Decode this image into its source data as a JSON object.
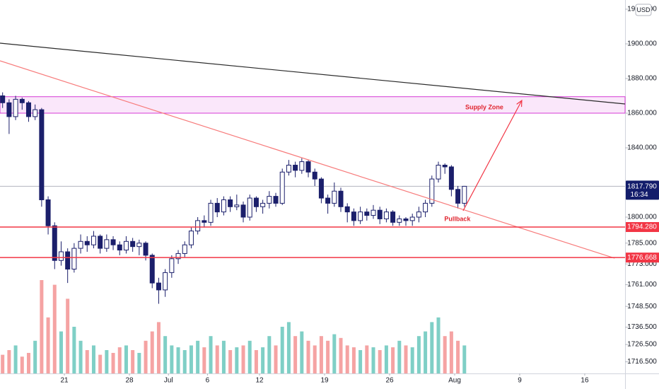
{
  "chart_data": {
    "type": "candlestick",
    "currency": "USD",
    "x": [
      -4.75,
      -4.25,
      -3.75,
      -3.25,
      -2.75,
      -2.25,
      -1.75,
      -1.25,
      -0.75,
      -0.25,
      0.25,
      0.75,
      1.25,
      1.75,
      2.25,
      2.75,
      3.25,
      3.75,
      4.25,
      4.75,
      5.25,
      5.75,
      6.25,
      6.75,
      7.25,
      7.75,
      8.25,
      8.75,
      9.25,
      9.75,
      10.25,
      10.75,
      11.25,
      11.75,
      12.25,
      12.75,
      13.25,
      13.75,
      14.25,
      14.75,
      15.25,
      15.75,
      16.25,
      16.75,
      17.25,
      17.75,
      18.25,
      18.75,
      19.25,
      19.75,
      20.25,
      20.75,
      21.25,
      21.75,
      22.25,
      22.75,
      23.25,
      23.75,
      24.25,
      24.75,
      25.25,
      25.75,
      26.25,
      26.75,
      27.25,
      27.75,
      28.25,
      28.75,
      29.25,
      29.75,
      30.25,
      30.75
    ],
    "open": [
      1870,
      1866,
      1858,
      1868,
      1866,
      1858,
      1862,
      1810,
      1795,
      1775,
      1780,
      1770,
      1782,
      1786,
      1784,
      1789,
      1782,
      1787,
      1784,
      1781,
      1786,
      1783,
      1785,
      1778,
      1762,
      1758,
      1768,
      1776,
      1779,
      1784,
      1792,
      1798,
      1797,
      1808,
      1803,
      1810,
      1806,
      1807,
      1800,
      1811,
      1806,
      1808,
      1812,
      1808,
      1826,
      1830,
      1827,
      1832,
      1826,
      1822,
      1811,
      1808,
      1815,
      1806,
      1803,
      1798,
      1803,
      1801,
      1804,
      1799,
      1803,
      1797,
      1799,
      1798,
      1800,
      1803,
      1808,
      1822,
      1830,
      1829,
      1816,
      1808
    ],
    "high": [
      1872,
      1868,
      1870,
      1869,
      1867,
      1865,
      1863,
      1812,
      1797,
      1786,
      1782,
      1785,
      1790,
      1789,
      1792,
      1790,
      1790,
      1789,
      1786,
      1789,
      1788,
      1787,
      1786,
      1779,
      1765,
      1770,
      1778,
      1781,
      1786,
      1794,
      1800,
      1801,
      1810,
      1811,
      1812,
      1812,
      1813,
      1809,
      1813,
      1812,
      1810,
      1815,
      1814,
      1828,
      1833,
      1832,
      1834,
      1833,
      1828,
      1823,
      1813,
      1820,
      1817,
      1808,
      1805,
      1806,
      1805,
      1807,
      1806,
      1805,
      1804,
      1801,
      1800,
      1802,
      1806,
      1810,
      1824,
      1832,
      1831,
      1830,
      1818,
      1818
    ],
    "low": [
      1863,
      1848,
      1856,
      1862,
      1855,
      1856,
      1806,
      1790,
      1770,
      1772,
      1762,
      1768,
      1779,
      1780,
      1782,
      1779,
      1780,
      1781,
      1778,
      1779,
      1780,
      1778,
      1775,
      1759,
      1750,
      1754,
      1765,
      1773,
      1777,
      1782,
      1790,
      1794,
      1795,
      1800,
      1801,
      1803,
      1804,
      1797,
      1798,
      1803,
      1802,
      1805,
      1806,
      1807,
      1824,
      1823,
      1825,
      1823,
      1818,
      1808,
      1802,
      1806,
      1803,
      1797,
      1795,
      1796,
      1798,
      1799,
      1796,
      1797,
      1795,
      1795,
      1795,
      1795,
      1797,
      1800,
      1806,
      1820,
      1825,
      1812,
      1805,
      1806
    ],
    "close": [
      1866,
      1858,
      1868,
      1866,
      1858,
      1862,
      1810,
      1795,
      1775,
      1780,
      1770,
      1782,
      1786,
      1784,
      1789,
      1782,
      1787,
      1784,
      1781,
      1786,
      1783,
      1785,
      1778,
      1762,
      1758,
      1768,
      1776,
      1779,
      1784,
      1792,
      1798,
      1797,
      1808,
      1803,
      1810,
      1806,
      1807,
      1800,
      1811,
      1806,
      1808,
      1812,
      1808,
      1826,
      1830,
      1827,
      1832,
      1826,
      1822,
      1811,
      1808,
      1815,
      1806,
      1803,
      1798,
      1803,
      1801,
      1804,
      1799,
      1803,
      1797,
      1799,
      1798,
      1800,
      1803,
      1808,
      1822,
      1830,
      1829,
      1816,
      1808,
      1817.79
    ],
    "volume": [
      20,
      25,
      30,
      18,
      22,
      35,
      100,
      60,
      95,
      45,
      80,
      50,
      35,
      25,
      30,
      20,
      25,
      22,
      28,
      30,
      25,
      22,
      35,
      45,
      55,
      40,
      30,
      28,
      25,
      30,
      35,
      28,
      40,
      30,
      35,
      25,
      28,
      30,
      35,
      25,
      28,
      40,
      30,
      50,
      55,
      40,
      45,
      35,
      30,
      40,
      35,
      42,
      38,
      30,
      28,
      25,
      30,
      28,
      25,
      30,
      28,
      35,
      30,
      28,
      40,
      45,
      55,
      60,
      40,
      45,
      35,
      30
    ],
    "xlim": [
      -4.95,
      43.1
    ],
    "xticks": [
      {
        "value": 0,
        "label": "21"
      },
      {
        "value": 5,
        "label": "28"
      },
      {
        "value": 8,
        "label": "Jul"
      },
      {
        "value": 11,
        "label": "6"
      },
      {
        "value": 15,
        "label": "12"
      },
      {
        "value": 20,
        "label": "19"
      },
      {
        "value": 25,
        "label": "26"
      },
      {
        "value": 30,
        "label": "Aug"
      },
      {
        "value": 35,
        "label": "9"
      },
      {
        "value": 40,
        "label": "16"
      }
    ],
    "ylim": [
      1709.8,
      1925.3
    ],
    "yticks": [
      {
        "value": 1920,
        "label": "1920.000"
      },
      {
        "value": 1900,
        "label": "1900.000"
      },
      {
        "value": 1880,
        "label": "1880.000"
      },
      {
        "value": 1860,
        "label": "1860.000"
      },
      {
        "value": 1840,
        "label": "1840.000"
      },
      {
        "value": 1800,
        "label": "1800.000"
      },
      {
        "value": 1785,
        "label": "1785.000"
      },
      {
        "value": 1773,
        "label": "1773.000"
      },
      {
        "value": 1761,
        "label": "1761.000"
      },
      {
        "value": 1748.5,
        "label": "1748.500"
      },
      {
        "value": 1736.5,
        "label": "1736.500"
      },
      {
        "value": 1726.5,
        "label": "1726.500"
      },
      {
        "value": 1716.5,
        "label": "1716.500"
      }
    ],
    "levels": [
      {
        "value": 1794.28,
        "label": "1794.280",
        "color": "#f23645"
      },
      {
        "value": 1776.668,
        "label": "1776.668",
        "color": "#f23645"
      }
    ],
    "last_price": {
      "value": 1817.79,
      "label": "1817.790",
      "countdown": "16:34",
      "color": "#131d6b"
    },
    "zone": {
      "low": 1860,
      "high": 1869.5,
      "label": "Supply Zone",
      "color": "#d63ad6",
      "label_x": 32.28,
      "label_y": 1863.3
    },
    "trendlines": [
      {
        "x": [
          -4.95,
          43.1
        ],
        "y": [
          1900.4,
          1865.3
        ],
        "color": "#2a2a2a"
      },
      {
        "x": [
          -4.95,
          42.3
        ],
        "y": [
          1890.2,
          1776.3
        ],
        "color": "#f77b7b"
      }
    ],
    "arrow": {
      "x": [
        30.65,
        35.16
      ],
      "y": [
        1803.7,
        1867.3
      ],
      "color": "#f23645"
    },
    "annotations": [
      {
        "text": "Pullback",
        "x": 30.21,
        "y": 1798.8,
        "color": "#e0252f"
      }
    ],
    "bull_color": "#ffffff",
    "bear_color": "#1b1f6b",
    "outline_color": "#1b1f6b",
    "volume_up_color": "#7fcfc6",
    "volume_down_color": "#f5a3a3"
  }
}
